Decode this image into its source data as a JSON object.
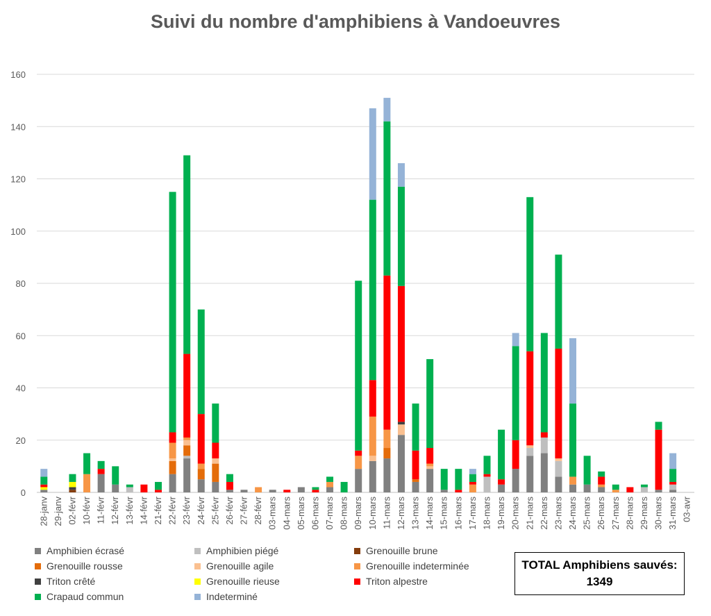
{
  "chart_data": {
    "type": "bar",
    "stacked": true,
    "title": "Suivi du nombre d'amphibiens à Vandoeuvres",
    "xlabel": "",
    "ylabel": "",
    "ylim": [
      0,
      160
    ],
    "yticks": [
      0,
      20,
      40,
      60,
      80,
      100,
      120,
      140,
      160
    ],
    "grid": true,
    "legend_position": "bottom",
    "categories": [
      "28-janv",
      "29-janv",
      "02-févr",
      "10-févr",
      "11-févr",
      "12-févr",
      "13-févr",
      "14-févr",
      "21-févr",
      "22-févr",
      "23-févr",
      "24-févr",
      "25-févr",
      "26-févr",
      "27-févr",
      "28-févr",
      "03-mars",
      "04-mars",
      "05-mars",
      "06-mars",
      "07-mars",
      "08-mars",
      "09-mars",
      "10-mars",
      "11-mars",
      "12-mars",
      "13-mars",
      "14-mars",
      "15-mars",
      "16-mars",
      "17-mars",
      "18-mars",
      "19-mars",
      "20-mars",
      "21-mars",
      "22-mars",
      "23-mars",
      "24-mars",
      "25-mars",
      "26-mars",
      "27-mars",
      "28-mars",
      "29-mars",
      "30-mars",
      "31-mars",
      "03-avr"
    ],
    "series": [
      {
        "name": "Amphibien écrasé",
        "color": "#808080",
        "values": [
          1,
          0,
          0,
          0,
          7,
          3,
          0,
          0,
          0,
          7,
          13,
          5,
          4,
          1,
          1,
          0,
          1,
          0,
          2,
          0,
          2,
          0,
          9,
          12,
          13,
          22,
          4,
          9,
          1,
          0,
          0,
          0,
          3,
          9,
          14,
          15,
          6,
          3,
          3,
          2,
          0,
          0,
          0,
          1,
          1,
          0
        ]
      },
      {
        "name": "Amphibien piégé",
        "color": "#bfbfbf",
        "values": [
          0,
          0,
          0,
          0,
          0,
          0,
          2,
          0,
          0,
          0,
          1,
          0,
          0,
          0,
          0,
          0,
          0,
          0,
          0,
          0,
          0,
          0,
          0,
          0,
          0,
          0,
          0,
          0,
          0,
          0,
          0,
          6,
          0,
          0,
          3,
          6,
          6,
          0,
          0,
          0,
          0,
          0,
          2,
          0,
          2,
          0
        ]
      },
      {
        "name": "Grenouille brune",
        "color": "#843c0c",
        "values": [
          0,
          0,
          1,
          0,
          0,
          0,
          0,
          0,
          0,
          0,
          0,
          0,
          0,
          0,
          0,
          0,
          0,
          0,
          0,
          0,
          0,
          0,
          0,
          0,
          0,
          0,
          0,
          0,
          0,
          0,
          0,
          0,
          0,
          0,
          0,
          0,
          0,
          0,
          0,
          0,
          0,
          0,
          0,
          0,
          0,
          0
        ]
      },
      {
        "name": "Grenouille rousse",
        "color": "#e46c0a",
        "values": [
          0,
          0,
          0,
          0,
          0,
          0,
          0,
          0,
          0,
          5,
          4,
          4,
          7,
          0,
          0,
          0,
          0,
          0,
          0,
          0,
          0,
          0,
          0,
          0,
          4,
          0,
          1,
          0,
          0,
          0,
          0,
          0,
          0,
          0,
          0,
          0,
          0,
          0,
          0,
          0,
          0,
          0,
          0,
          0,
          0,
          0
        ]
      },
      {
        "name": "Grenouille agile",
        "color": "#fac090",
        "values": [
          0,
          0,
          0,
          0,
          0,
          0,
          0,
          0,
          0,
          1,
          2,
          0,
          2,
          0,
          0,
          0,
          0,
          0,
          0,
          0,
          0,
          0,
          0,
          2,
          0,
          4,
          0,
          1,
          0,
          0,
          0,
          0,
          0,
          0,
          1,
          0,
          1,
          0,
          0,
          0,
          0,
          0,
          0,
          0,
          0,
          0
        ]
      },
      {
        "name": "Grenouille indeterminée",
        "color": "#f79646",
        "values": [
          0,
          0,
          0,
          7,
          0,
          0,
          0,
          0,
          0,
          6,
          1,
          2,
          0,
          0,
          0,
          2,
          0,
          0,
          0,
          0,
          2,
          0,
          5,
          15,
          7,
          0,
          0,
          1,
          0,
          0,
          3,
          0,
          0,
          0,
          0,
          0,
          0,
          3,
          0,
          1,
          1,
          0,
          0,
          0,
          0,
          0
        ]
      },
      {
        "name": "Triton crêté",
        "color": "#404040",
        "values": [
          0,
          0,
          1,
          0,
          0,
          0,
          0,
          0,
          0,
          0,
          0,
          0,
          0,
          0,
          0,
          0,
          0,
          0,
          0,
          0,
          0,
          0,
          0,
          0,
          0,
          1,
          0,
          0,
          0,
          0,
          0,
          0,
          0,
          0,
          0,
          0,
          0,
          0,
          0,
          0,
          0,
          0,
          0,
          0,
          0,
          0
        ]
      },
      {
        "name": "Grenouille rieuse",
        "color": "#ffff00",
        "values": [
          1,
          0,
          2,
          0,
          0,
          0,
          0,
          0,
          0,
          0,
          0,
          0,
          0,
          0,
          0,
          0,
          0,
          0,
          0,
          0,
          0,
          0,
          0,
          0,
          0,
          0,
          0,
          0,
          0,
          0,
          0,
          0,
          0,
          0,
          0,
          0,
          0,
          0,
          0,
          0,
          0,
          0,
          0,
          0,
          0,
          0
        ]
      },
      {
        "name": "Triton alpestre",
        "color": "#ff0000",
        "values": [
          1,
          0,
          0,
          0,
          2,
          0,
          0,
          3,
          1,
          4,
          32,
          19,
          6,
          3,
          0,
          0,
          0,
          1,
          0,
          1,
          0,
          0,
          2,
          14,
          59,
          52,
          11,
          6,
          0,
          1,
          1,
          1,
          2,
          11,
          36,
          2,
          42,
          0,
          0,
          3,
          0,
          2,
          0,
          23,
          1,
          0
        ]
      },
      {
        "name": "Crapaud commun",
        "color": "#00b050",
        "values": [
          3,
          0,
          3,
          8,
          3,
          7,
          1,
          0,
          3,
          92,
          76,
          40,
          15,
          3,
          0,
          0,
          0,
          0,
          0,
          1,
          2,
          4,
          65,
          69,
          59,
          38,
          18,
          34,
          8,
          8,
          3,
          7,
          19,
          36,
          59,
          38,
          36,
          28,
          11,
          2,
          2,
          0,
          1,
          3,
          5,
          0
        ]
      },
      {
        "name": "Indeterminé",
        "color": "#95b3d7",
        "values": [
          3,
          0,
          0,
          0,
          0,
          0,
          0,
          0,
          0,
          0,
          0,
          0,
          0,
          0,
          0,
          0,
          0,
          0,
          0,
          0,
          0,
          0,
          0,
          35,
          9,
          9,
          0,
          0,
          0,
          0,
          2,
          0,
          0,
          5,
          0,
          0,
          0,
          25,
          0,
          0,
          0,
          0,
          0,
          0,
          6,
          0
        ]
      }
    ]
  },
  "total_box": {
    "line1": "TOTAL Amphibiens sauvés:",
    "line2": "1349"
  }
}
